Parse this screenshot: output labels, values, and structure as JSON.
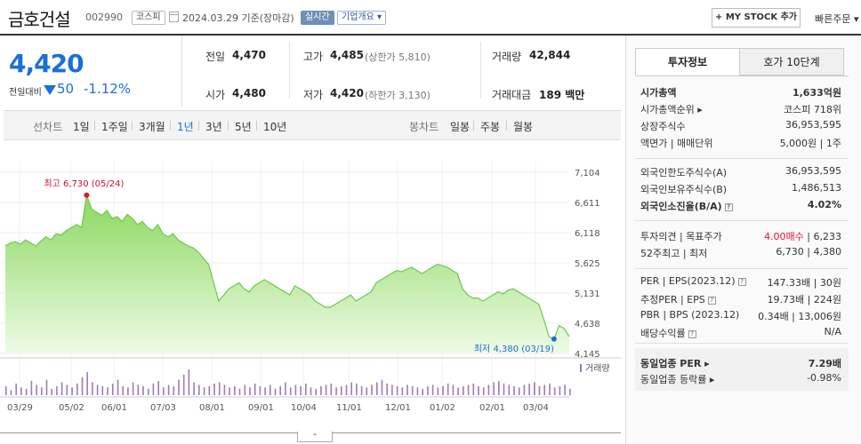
{
  "header": {
    "company_name": "금호건설",
    "stock_code": "002990",
    "market": "코스피",
    "date_text": "2024.03.29  기준(장마감)",
    "realtime": "실시간",
    "company_info": "기업개요 ▾",
    "mystock_button": "+ MY STOCK 추가",
    "quick_order": "빠른주문 ▾"
  },
  "summary": {
    "price": "4,420",
    "change_label": "전일대비",
    "change_amount": "50",
    "change_rate": "-1.12%",
    "prev_close_label": "전일",
    "prev_close": "4,470",
    "open_label": "시가",
    "open": "4,480",
    "high_label": "고가",
    "high": "4,485",
    "upper_limit": "(상한가 5,810)",
    "low_label": "저가",
    "low": "4,420",
    "lower_limit": "(하한가 3,130)",
    "volume_label": "거래량",
    "volume": "42,844",
    "amount_label": "거래대금",
    "amount": "189 백만"
  },
  "periods": {
    "line_label": "선차트",
    "line": [
      "1일",
      "1주일",
      "3개월",
      "1년",
      "3년",
      "5년",
      "10년"
    ],
    "active": "1년",
    "candle_label": "봉차트",
    "candle": [
      "일봉",
      "주봉",
      "월봉"
    ]
  },
  "chart_data": {
    "type": "area",
    "title": "",
    "y_ticks": [
      "7,104",
      "6,611",
      "6,118",
      "5,625",
      "5,131",
      "4,638",
      "4,145"
    ],
    "x_ticks": [
      "03/29",
      "05/02",
      "06/01",
      "07/03",
      "08/01",
      "09/01",
      "10/04",
      "11/01",
      "12/01",
      "01/02",
      "02/01",
      "03/04"
    ],
    "ylim": [
      4145,
      7104
    ],
    "high_label": "최고 6,730 (05/24)",
    "low_label": "최저 4,380 (03/19)",
    "volume_label": "거래량",
    "values": [
      5900,
      5950,
      5970,
      5930,
      6000,
      5950,
      5900,
      5980,
      6050,
      6000,
      6100,
      6080,
      6150,
      6200,
      6250,
      6200,
      6730,
      6500,
      6450,
      6400,
      6480,
      6350,
      6380,
      6300,
      6420,
      6350,
      6250,
      6300,
      6200,
      6150,
      6250,
      6100,
      6050,
      6100,
      6000,
      5950,
      5900,
      5870,
      5800,
      5700,
      5600,
      5300,
      5000,
      5100,
      5200,
      5250,
      5300,
      5200,
      5150,
      5250,
      5300,
      5350,
      5300,
      5250,
      5200,
      5150,
      5100,
      5250,
      5200,
      5150,
      5100,
      5000,
      4950,
      4900,
      4900,
      4950,
      5000,
      5050,
      5100,
      5000,
      5050,
      5100,
      5150,
      5300,
      5350,
      5400,
      5450,
      5500,
      5480,
      5520,
      5550,
      5500,
      5450,
      5500,
      5550,
      5600,
      5580,
      5550,
      5500,
      5450,
      5200,
      5100,
      5050,
      5050,
      5000,
      5050,
      5100,
      5150,
      5120,
      5180,
      5200,
      5150,
      5100,
      5050,
      5000,
      4950,
      4700,
      4420,
      4380,
      4600,
      4550,
      4420
    ],
    "volumes": [
      35,
      20,
      45,
      30,
      25,
      55,
      40,
      30,
      60,
      25,
      35,
      50,
      40,
      30,
      45,
      70,
      90,
      50,
      40,
      35,
      30,
      45,
      60,
      35,
      30,
      50,
      40,
      35,
      25,
      45,
      55,
      30,
      40,
      35,
      60,
      80,
      100,
      50,
      40,
      30,
      35,
      45,
      50,
      40,
      30,
      35,
      25,
      40,
      30,
      45,
      35,
      30,
      40,
      25,
      35,
      50,
      30,
      40,
      35,
      45,
      30,
      25,
      35,
      40,
      45,
      30,
      35,
      40,
      50,
      45,
      35,
      30,
      40,
      50,
      60,
      45,
      40,
      35,
      30,
      40,
      35,
      30,
      25,
      35,
      40,
      30,
      35,
      45,
      40,
      30,
      35,
      40,
      45,
      35,
      30,
      40,
      50,
      55,
      45,
      40,
      35,
      30,
      40,
      45,
      50,
      35,
      40,
      45,
      30,
      35,
      40,
      25
    ]
  },
  "right": {
    "tab1": "투자정보",
    "tab2": "호가 10단계",
    "rows1": [
      {
        "label": "시가총액",
        "value": "1,633억원",
        "bold": true
      },
      {
        "label": "시가총액순위 ▸",
        "value": "코스피 718위"
      },
      {
        "label": "상장주식수",
        "value": "36,953,595"
      },
      {
        "label": "액면가 | 매매단위",
        "value": "5,000원  |  1주"
      }
    ],
    "rows2": [
      {
        "label": "외국인한도주식수(A)",
        "value": "36,953,595"
      },
      {
        "label": "외국인보유주식수(B)",
        "value": "1,486,513"
      },
      {
        "label": "외국인소진율(B/A)",
        "value": "4.02%",
        "bold": true
      }
    ],
    "rows3": [
      {
        "label": "투자의견 | 목표주가",
        "value_red": "4.00매수",
        "value": " | 6,233"
      },
      {
        "label": "52주최고 | 최저",
        "value": "6,730  |  4,380"
      }
    ],
    "rows4": [
      {
        "label": "PER | EPS(2023.12)",
        "value": "147.33배 | 30원"
      },
      {
        "label": "추정PER | EPS",
        "value": "19.73배 | 224원"
      },
      {
        "label": "PBR | BPS (2023.12)",
        "value": "0.34배 | 13,006원"
      },
      {
        "label": "배당수익률",
        "value": "N/A"
      }
    ],
    "industry_per_label": "동일업종 PER ▸",
    "industry_per": "7.29배",
    "industry_change_label": "동일업종 등락률 ▸",
    "industry_change": "-0.98%"
  },
  "colors": {
    "up": "#e8112d",
    "down": "#1a6fd9",
    "area": "#9ee07a"
  }
}
